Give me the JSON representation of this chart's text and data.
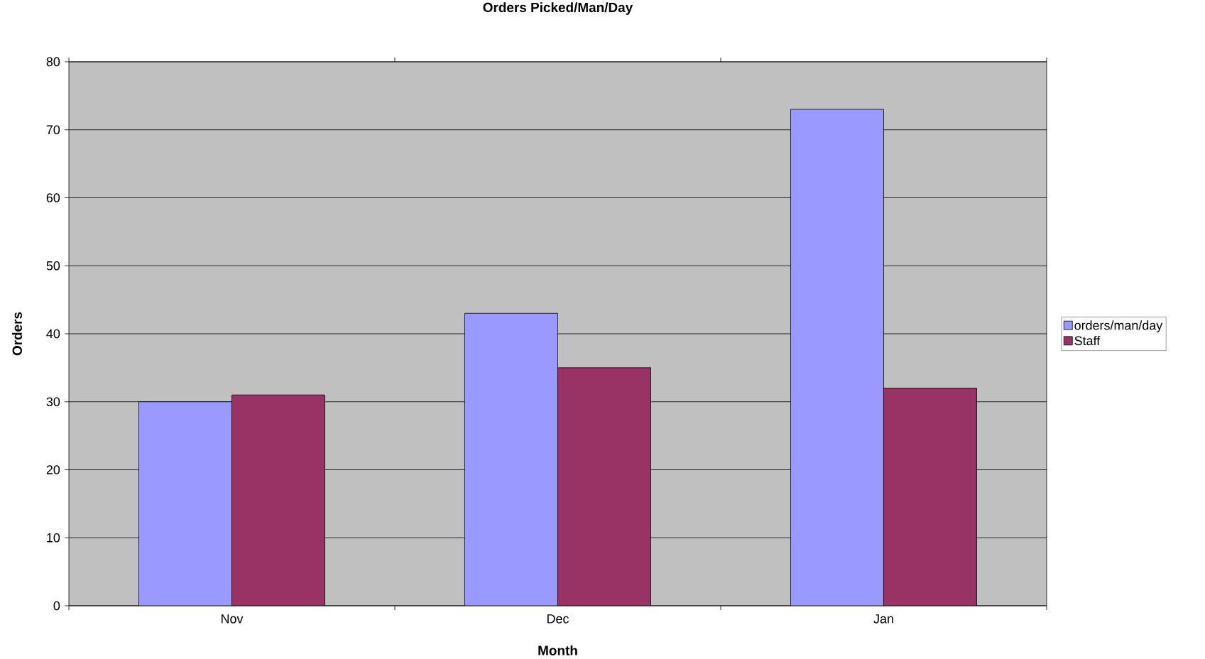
{
  "chart_data": {
    "type": "bar",
    "title": "Orders Picked/Man/Day",
    "xlabel": "Month",
    "ylabel": "Orders",
    "categories": [
      "Nov",
      "Dec",
      "Jan"
    ],
    "series": [
      {
        "name": "orders/man/day",
        "color": "#9999ff",
        "values": [
          30,
          43,
          73
        ]
      },
      {
        "name": "Staff",
        "color": "#993366",
        "values": [
          31,
          35,
          32
        ]
      }
    ],
    "ylim": [
      0,
      80
    ],
    "yticks": [
      0,
      10,
      20,
      30,
      40,
      50,
      60,
      70,
      80
    ],
    "grid": "y",
    "legend": "right"
  }
}
